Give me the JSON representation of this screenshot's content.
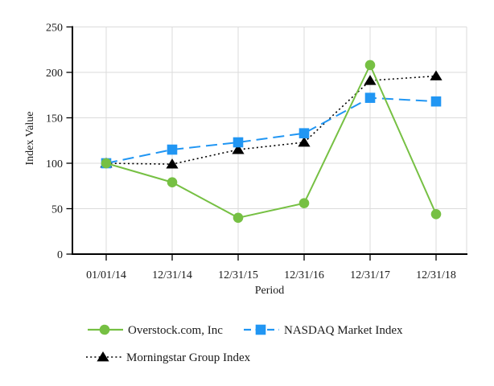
{
  "chart_data": {
    "type": "line",
    "title": "",
    "xlabel": "Period",
    "ylabel": "Index Value",
    "categories": [
      "01/01/14",
      "12/31/14",
      "12/31/15",
      "12/31/16",
      "12/31/17",
      "12/31/18"
    ],
    "ylim": [
      0,
      250
    ],
    "yticks": [
      0,
      50,
      100,
      150,
      200,
      250
    ],
    "grid": true,
    "legend_position": "bottom",
    "series": [
      {
        "name": "Overstock.com, Inc",
        "color": "#76C043",
        "marker": "circle",
        "line_style": "solid",
        "values": [
          100,
          79,
          40,
          56,
          208,
          44
        ]
      },
      {
        "name": "NASDAQ Market Index",
        "color": "#2196F3",
        "marker": "square",
        "line_style": "dashed",
        "values": [
          100,
          115,
          123,
          133,
          172,
          168
        ]
      },
      {
        "name": "Morningstar Group Index",
        "color": "#000000",
        "marker": "triangle",
        "line_style": "dotted",
        "values": [
          100,
          99,
          115,
          123,
          191,
          196
        ]
      }
    ]
  },
  "colors": {
    "grid": "#DBDBDB",
    "axis": "#000000",
    "text": "#1A1A1A",
    "background": "#FFFFFF"
  }
}
